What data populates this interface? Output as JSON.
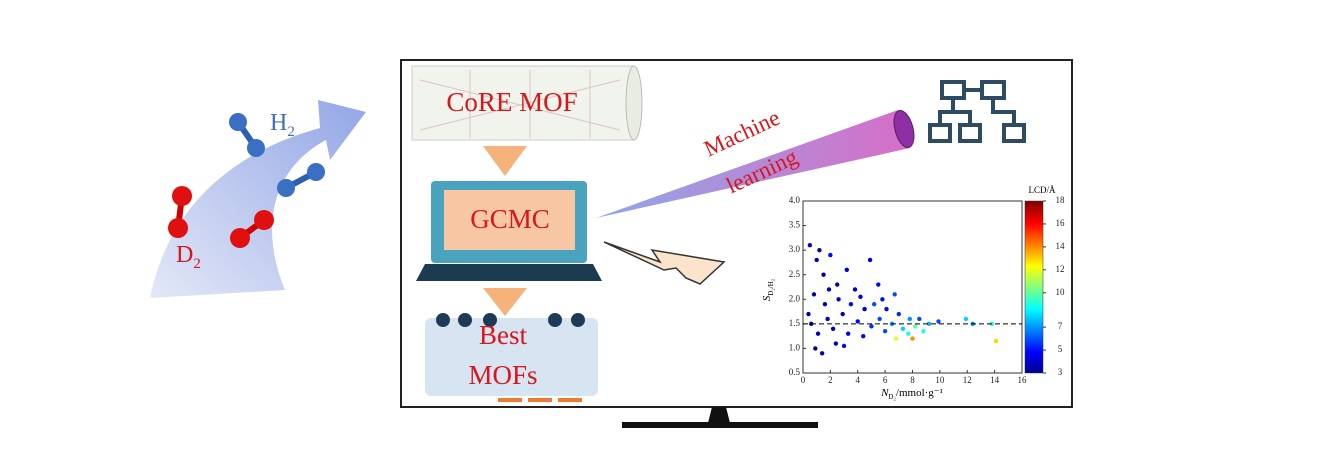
{
  "molecules": {
    "h2": {
      "symbol": "H",
      "sub": "2"
    },
    "d2": {
      "symbol": "D",
      "sub": "2"
    }
  },
  "steps": {
    "database": "CoRE MOF",
    "simulation": "GCMC",
    "result": [
      "Best",
      "MOFs"
    ],
    "method": [
      "Machine",
      "learning"
    ]
  },
  "plot": {
    "xlabel": {
      "symbol": "N",
      "sub": "D₂",
      "unit": "/mmol·g⁻¹"
    },
    "ylabel": {
      "symbol": "S",
      "sub": "D₂/H₂"
    },
    "colorbar_label": "LCD/Å",
    "xlim": [
      0,
      16
    ],
    "xticks": [
      0,
      2,
      4,
      6,
      8,
      10,
      12,
      14,
      16
    ],
    "ylim": [
      0.5,
      4.0
    ],
    "yticks": [
      0.5,
      {
        "value": 1,
        "label": "1.0"
      },
      1.5,
      {
        "value": 2,
        "label": "2.0"
      },
      2.5,
      {
        "value": 3,
        "label": "3.0"
      },
      3.5,
      {
        "value": 4,
        "label": "4.0"
      }
    ],
    "clim": [
      3,
      18
    ],
    "cticks": [
      3,
      5,
      7,
      10,
      12,
      14,
      16,
      18
    ],
    "reference_line": 1.5,
    "points": [
      [
        0.5,
        3.1,
        4
      ],
      [
        1.2,
        3.0,
        3.5
      ],
      [
        1.0,
        2.8,
        4
      ],
      [
        2.0,
        2.9,
        5
      ],
      [
        3.2,
        2.6,
        4
      ],
      [
        4.9,
        2.8,
        4.5
      ],
      [
        1.5,
        2.5,
        3.5
      ],
      [
        2.5,
        2.3,
        4
      ],
      [
        3.8,
        2.2,
        4
      ],
      [
        5.5,
        2.3,
        5
      ],
      [
        6.7,
        2.1,
        6
      ],
      [
        0.8,
        2.1,
        3.5
      ],
      [
        1.6,
        1.9,
        4
      ],
      [
        2.6,
        2.0,
        4.5
      ],
      [
        3.5,
        1.9,
        5
      ],
      [
        4.5,
        1.8,
        4
      ],
      [
        5.2,
        1.9,
        6
      ],
      [
        6.1,
        1.8,
        5
      ],
      [
        7.0,
        1.7,
        5.5
      ],
      [
        7.8,
        1.6,
        7
      ],
      [
        8.5,
        1.6,
        6
      ],
      [
        9.2,
        1.5,
        7.5
      ],
      [
        9.9,
        1.55,
        6
      ],
      [
        11.9,
        1.6,
        8
      ],
      [
        12.4,
        1.5,
        7
      ],
      [
        13.8,
        1.5,
        9
      ],
      [
        14.1,
        1.15,
        13
      ],
      [
        0.6,
        1.5,
        3.5
      ],
      [
        1.1,
        1.3,
        4
      ],
      [
        1.8,
        1.6,
        4
      ],
      [
        2.2,
        1.4,
        3.5
      ],
      [
        2.9,
        1.7,
        4
      ],
      [
        3.3,
        1.3,
        4.5
      ],
      [
        4.0,
        1.55,
        5
      ],
      [
        4.4,
        1.25,
        5
      ],
      [
        5.0,
        1.45,
        5.5
      ],
      [
        5.6,
        1.6,
        6
      ],
      [
        6.0,
        1.35,
        6
      ],
      [
        6.5,
        1.5,
        7
      ],
      [
        7.3,
        1.4,
        8
      ],
      [
        7.7,
        1.3,
        9
      ],
      [
        8.2,
        1.45,
        10
      ],
      [
        8.8,
        1.35,
        9
      ],
      [
        0.9,
        1.0,
        3.5
      ],
      [
        1.4,
        0.9,
        4
      ],
      [
        2.4,
        1.1,
        4
      ],
      [
        3.0,
        1.05,
        5
      ],
      [
        0.4,
        1.7,
        3.5
      ],
      [
        1.9,
        2.2,
        4
      ],
      [
        4.2,
        2.05,
        4.5
      ],
      [
        5.8,
        2.0,
        5
      ],
      [
        6.8,
        1.2,
        12
      ],
      [
        8.0,
        1.2,
        14
      ]
    ]
  }
}
